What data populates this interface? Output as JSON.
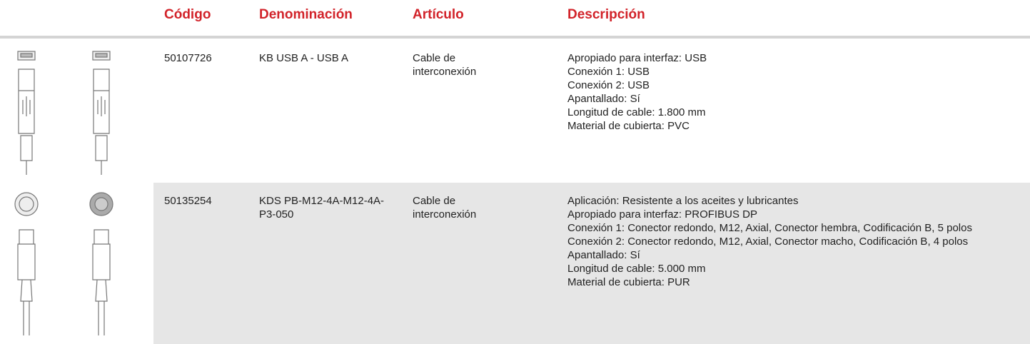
{
  "header": {
    "columns": [
      "Código",
      "Denominación",
      "Artículo",
      "Descripción"
    ]
  },
  "table": {
    "rows": [
      {
        "code": "50107726",
        "name": "KB USB A - USB A",
        "article": "Cable de interconexión",
        "description": [
          "Apropiado para interfaz: USB",
          "Conexión 1: USB",
          "Conexión 2: USB",
          "Apantallado: Sí",
          "Longitud de cable: 1.800 mm",
          "Material de cubierta: PVC"
        ]
      },
      {
        "code": "50135254",
        "name": "KDS PB-M12-4A-M12-4A-P3-050",
        "article": "Cable de interconexión",
        "description": [
          "Aplicación: Resistente a los aceites y lubricantes",
          "Apropiado para interfaz: PROFIBUS DP",
          "Conexión 1: Conector redondo, M12, Axial, Conector hembra, Codificación B, 5 polos",
          "Conexión 2: Conector redondo, M12, Axial, Conector macho, Codificación B, 4 polos",
          "Apantallado: Sí",
          "Longitud de cable: 5.000 mm",
          "Material de cubierta: PUR"
        ]
      }
    ]
  }
}
